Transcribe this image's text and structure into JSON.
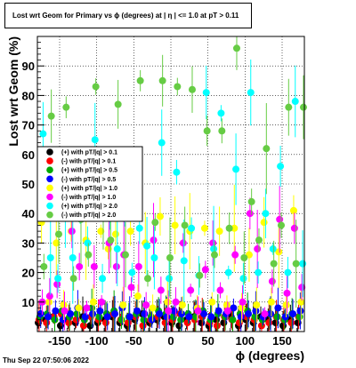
{
  "title": "Lost wrt Geom for Primary vs ϕ (degrees) at |  η  | <= 1.0 at pT > 0.11",
  "timestamp": "Thu Sep 22 07:50:06 2022",
  "chart_data": {
    "type": "scatter",
    "title": "Lost wrt Geom for Primary vs ϕ (degrees) at |  η  | <= 1.0 at pT > 0.11",
    "xlabel": "ϕ (degrees)",
    "ylabel": "Lost wrt Geom (%)",
    "xlim": [
      -180,
      180
    ],
    "ylim": [
      0,
      100
    ],
    "xticks": [
      -150,
      -100,
      -50,
      0,
      50,
      100,
      150
    ],
    "yticks": [
      10,
      20,
      30,
      40,
      50,
      60,
      70,
      80,
      90
    ],
    "grid": true,
    "legend_position": "middle-left",
    "series": [
      {
        "name": "(+) with pT/|q| > 0.1",
        "color": "#000000",
        "marker": "circle",
        "x": [
          -175,
          -165,
          -155,
          -145,
          -135,
          -125,
          -115,
          -105,
          -95,
          -85,
          -75,
          -65,
          -55,
          -45,
          -35,
          -25,
          -15,
          -5,
          5,
          15,
          25,
          35,
          45,
          55,
          65,
          75,
          85,
          95,
          105,
          115,
          125,
          135,
          145,
          155,
          165,
          175
        ],
        "y": [
          3,
          4,
          5,
          2,
          4,
          3,
          5,
          2,
          3,
          4,
          5,
          3,
          2,
          4,
          6,
          3,
          4,
          5,
          3,
          2,
          4,
          5,
          3,
          2,
          4,
          3,
          5,
          2,
          4,
          3,
          5,
          4,
          3,
          2,
          4,
          3
        ]
      },
      {
        "name": "(-) with pT/|q| > 0.1",
        "color": "#ff0000",
        "marker": "circle",
        "x": [
          -175,
          -165,
          -155,
          -145,
          -135,
          -125,
          -115,
          -105,
          -95,
          -85,
          -75,
          -65,
          -55,
          -45,
          -35,
          -25,
          -15,
          -5,
          5,
          15,
          25,
          35,
          45,
          55,
          65,
          75,
          85,
          95,
          105,
          115,
          125,
          135,
          145,
          155,
          165,
          175
        ],
        "y": [
          4,
          3,
          5,
          6,
          3,
          4,
          2,
          5,
          4,
          3,
          6,
          4,
          3,
          5,
          2,
          4,
          5,
          3,
          4,
          6,
          3,
          4,
          5,
          3,
          2,
          5,
          4,
          3,
          5,
          4,
          2,
          3,
          5,
          4,
          3,
          5
        ]
      },
      {
        "name": "(+) with pT/|q| > 0.5",
        "color": "#00aa00",
        "marker": "circle",
        "x": [
          -175,
          -165,
          -155,
          -145,
          -135,
          -125,
          -115,
          -105,
          -95,
          -85,
          -75,
          -65,
          -55,
          -45,
          -35,
          -25,
          -15,
          -5,
          5,
          15,
          25,
          35,
          45,
          55,
          65,
          75,
          85,
          95,
          105,
          115,
          125,
          135,
          145,
          155,
          165,
          175
        ],
        "y": [
          5,
          6,
          4,
          7,
          5,
          6,
          4,
          8,
          5,
          6,
          7,
          4,
          5,
          6,
          4,
          5,
          7,
          6,
          5,
          4,
          6,
          5,
          7,
          4,
          6,
          5,
          4,
          6,
          7,
          5,
          4,
          6,
          5,
          4,
          6,
          5
        ]
      },
      {
        "name": "(-) with pT/|q| > 0.5",
        "color": "#0000ff",
        "marker": "circle",
        "x": [
          -175,
          -165,
          -155,
          -145,
          -135,
          -125,
          -115,
          -105,
          -95,
          -85,
          -75,
          -65,
          -55,
          -45,
          -35,
          -25,
          -15,
          -5,
          5,
          15,
          25,
          35,
          45,
          55,
          65,
          75,
          85,
          95,
          105,
          115,
          125,
          135,
          145,
          155,
          165,
          175
        ],
        "y": [
          6,
          5,
          7,
          4,
          6,
          8,
          5,
          6,
          7,
          5,
          6,
          8,
          5,
          7,
          6,
          4,
          6,
          5,
          7,
          6,
          5,
          8,
          6,
          5,
          7,
          6,
          8,
          5,
          6,
          7,
          5,
          6,
          8,
          5,
          6,
          7
        ]
      },
      {
        "name": "(+) with pT/|q| > 1.0",
        "color": "#ffff00",
        "marker": "circle",
        "x": [
          -175,
          -165,
          -155,
          -145,
          -135,
          -125,
          -115,
          -105,
          -95,
          -85,
          -75,
          -65,
          -55,
          -45,
          -35,
          -25,
          -15,
          -5,
          5,
          15,
          25,
          35,
          45,
          55,
          65,
          75,
          85,
          95,
          105,
          115,
          125,
          135,
          145,
          155,
          165,
          175
        ],
        "y": [
          37,
          10,
          30,
          9,
          34,
          8,
          31,
          10,
          34,
          28,
          33,
          9,
          34,
          12,
          30,
          8,
          39,
          10,
          36,
          9,
          34,
          8,
          35,
          10,
          34,
          9,
          35,
          8,
          26,
          9,
          37,
          10,
          27,
          9,
          41,
          10
        ]
      },
      {
        "name": "(-) with pT/|q| > 1.0",
        "color": "#ff00ff",
        "marker": "circle",
        "x": [
          -175,
          -165,
          -155,
          -145,
          -135,
          -125,
          -115,
          -105,
          -95,
          -85,
          -75,
          -65,
          -55,
          -45,
          -35,
          -25,
          -15,
          -5,
          5,
          15,
          25,
          35,
          45,
          55,
          65,
          75,
          85,
          95,
          105,
          115,
          125,
          135,
          145,
          155,
          165,
          175
        ],
        "y": [
          10,
          12,
          16,
          7,
          34,
          22,
          8,
          22,
          10,
          30,
          22,
          26,
          15,
          22,
          9,
          31,
          14,
          7,
          10,
          30,
          14,
          7,
          21,
          30,
          14,
          7,
          26,
          10,
          40,
          28,
          6,
          17,
          38,
          13,
          35,
          15
        ]
      },
      {
        "name": "(+) with pT/|q| > 2.0",
        "color": "#00ffff",
        "marker": "circle",
        "x": [
          -175,
          -165,
          -155,
          -145,
          -135,
          -125,
          -115,
          -105,
          -95,
          -85,
          -75,
          -65,
          -55,
          -45,
          -35,
          -25,
          -15,
          -5,
          5,
          15,
          25,
          35,
          45,
          55,
          65,
          75,
          85,
          95,
          105,
          115,
          125,
          135,
          145,
          155,
          165,
          175
        ],
        "y": [
          67,
          25,
          18,
          40,
          25,
          48,
          30,
          65,
          18,
          41,
          28,
          45,
          20,
          35,
          29,
          25,
          64,
          18,
          54,
          24,
          35,
          19,
          81,
          28,
          74,
          20,
          55,
          18,
          81,
          20,
          40,
          28,
          56,
          20,
          78,
          23
        ]
      },
      {
        "name": "(-) with pT/|q| > 2.0",
        "color": "#66cc44",
        "marker": "circle",
        "x": [
          -175,
          -165,
          -155,
          -145,
          -135,
          -125,
          -115,
          -105,
          -95,
          -85,
          -75,
          -65,
          -55,
          -45,
          -35,
          -25,
          -15,
          -5,
          5,
          15,
          25,
          35,
          45,
          55,
          65,
          75,
          85,
          95,
          105,
          115,
          125,
          135,
          145,
          155,
          165,
          175
        ],
        "y": [
          22,
          73,
          33,
          76,
          18,
          38,
          26,
          83,
          42,
          31,
          77,
          26,
          40,
          85,
          18,
          37,
          85,
          25,
          83,
          36,
          82,
          19,
          68,
          26,
          68,
          35,
          96,
          25,
          44,
          31,
          62,
          23,
          36,
          76,
          23,
          76
        ]
      }
    ]
  }
}
